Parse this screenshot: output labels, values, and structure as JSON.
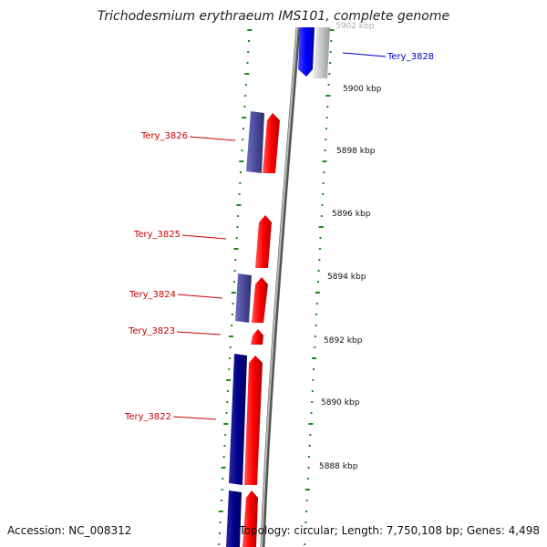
{
  "header": {
    "title": "Trichodesmium erythraeum IMS101, complete genome"
  },
  "footer": {
    "accession": "Accession: NC_008312",
    "topology": "Topology: circular; Length: 7,750,108 bp; Genes: 4,498"
  },
  "scale": {
    "labels": [
      "5902 kbp",
      "5900 kbp",
      "5898 kbp",
      "5896 kbp",
      "5894 kbp",
      "5892 kbp",
      "5890 kbp",
      "5888 kbp"
    ]
  },
  "genes": [
    {
      "label": "Tery_3828",
      "color": "#0000cc"
    },
    {
      "label": "Tery_3826",
      "color": "#cc0000"
    },
    {
      "label": "Tery_3825",
      "color": "#cc0000"
    },
    {
      "label": "Tery_3824",
      "color": "#cc0000"
    },
    {
      "label": "Tery_3823",
      "color": "#cc0000"
    },
    {
      "label": "Tery_3822",
      "color": "#cc0000"
    }
  ],
  "colors": {
    "forward_gene": "#ff0000",
    "reverse_gene_blue": "#0000ff",
    "reverse_gene_dark": "#00008b",
    "cds_purple": "#4b4b9b",
    "backbone": "#888888",
    "gc_skew_dots": "#1a8c1a",
    "other_gene": "#c0c0c0"
  }
}
